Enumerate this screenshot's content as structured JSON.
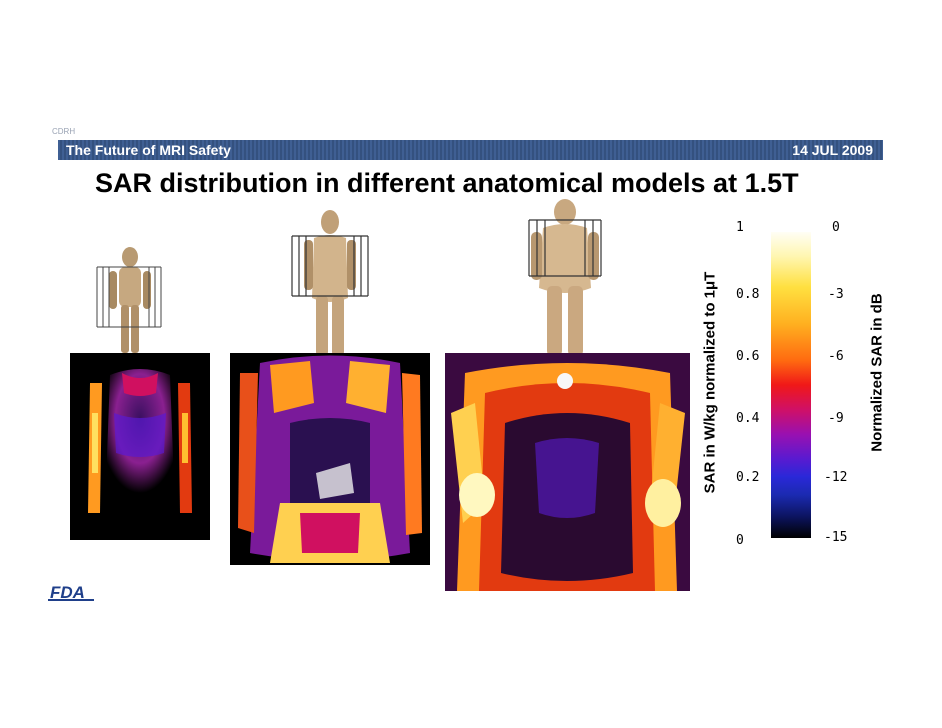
{
  "header": {
    "org_label": "CDRH",
    "banner_left": "The Future of MRI Safety",
    "banner_right": "14 JUL 2009"
  },
  "slide": {
    "title": "SAR distribution in different anatomical models at 1.5T"
  },
  "models": [
    {
      "name": "small-body-model"
    },
    {
      "name": "medium-body-model"
    },
    {
      "name": "large-body-model"
    }
  ],
  "colorbar": {
    "left_label": "SAR in W/kg normalized to 1μT",
    "right_label": "Normalized SAR in dB",
    "left_ticks": [
      "1",
      "0.8",
      "0.6",
      "0.4",
      "0.2",
      "0"
    ],
    "right_ticks": [
      "0",
      "-3",
      "-6",
      "-9",
      "-12",
      "-15"
    ]
  },
  "logo": {
    "text": "FDA"
  }
}
